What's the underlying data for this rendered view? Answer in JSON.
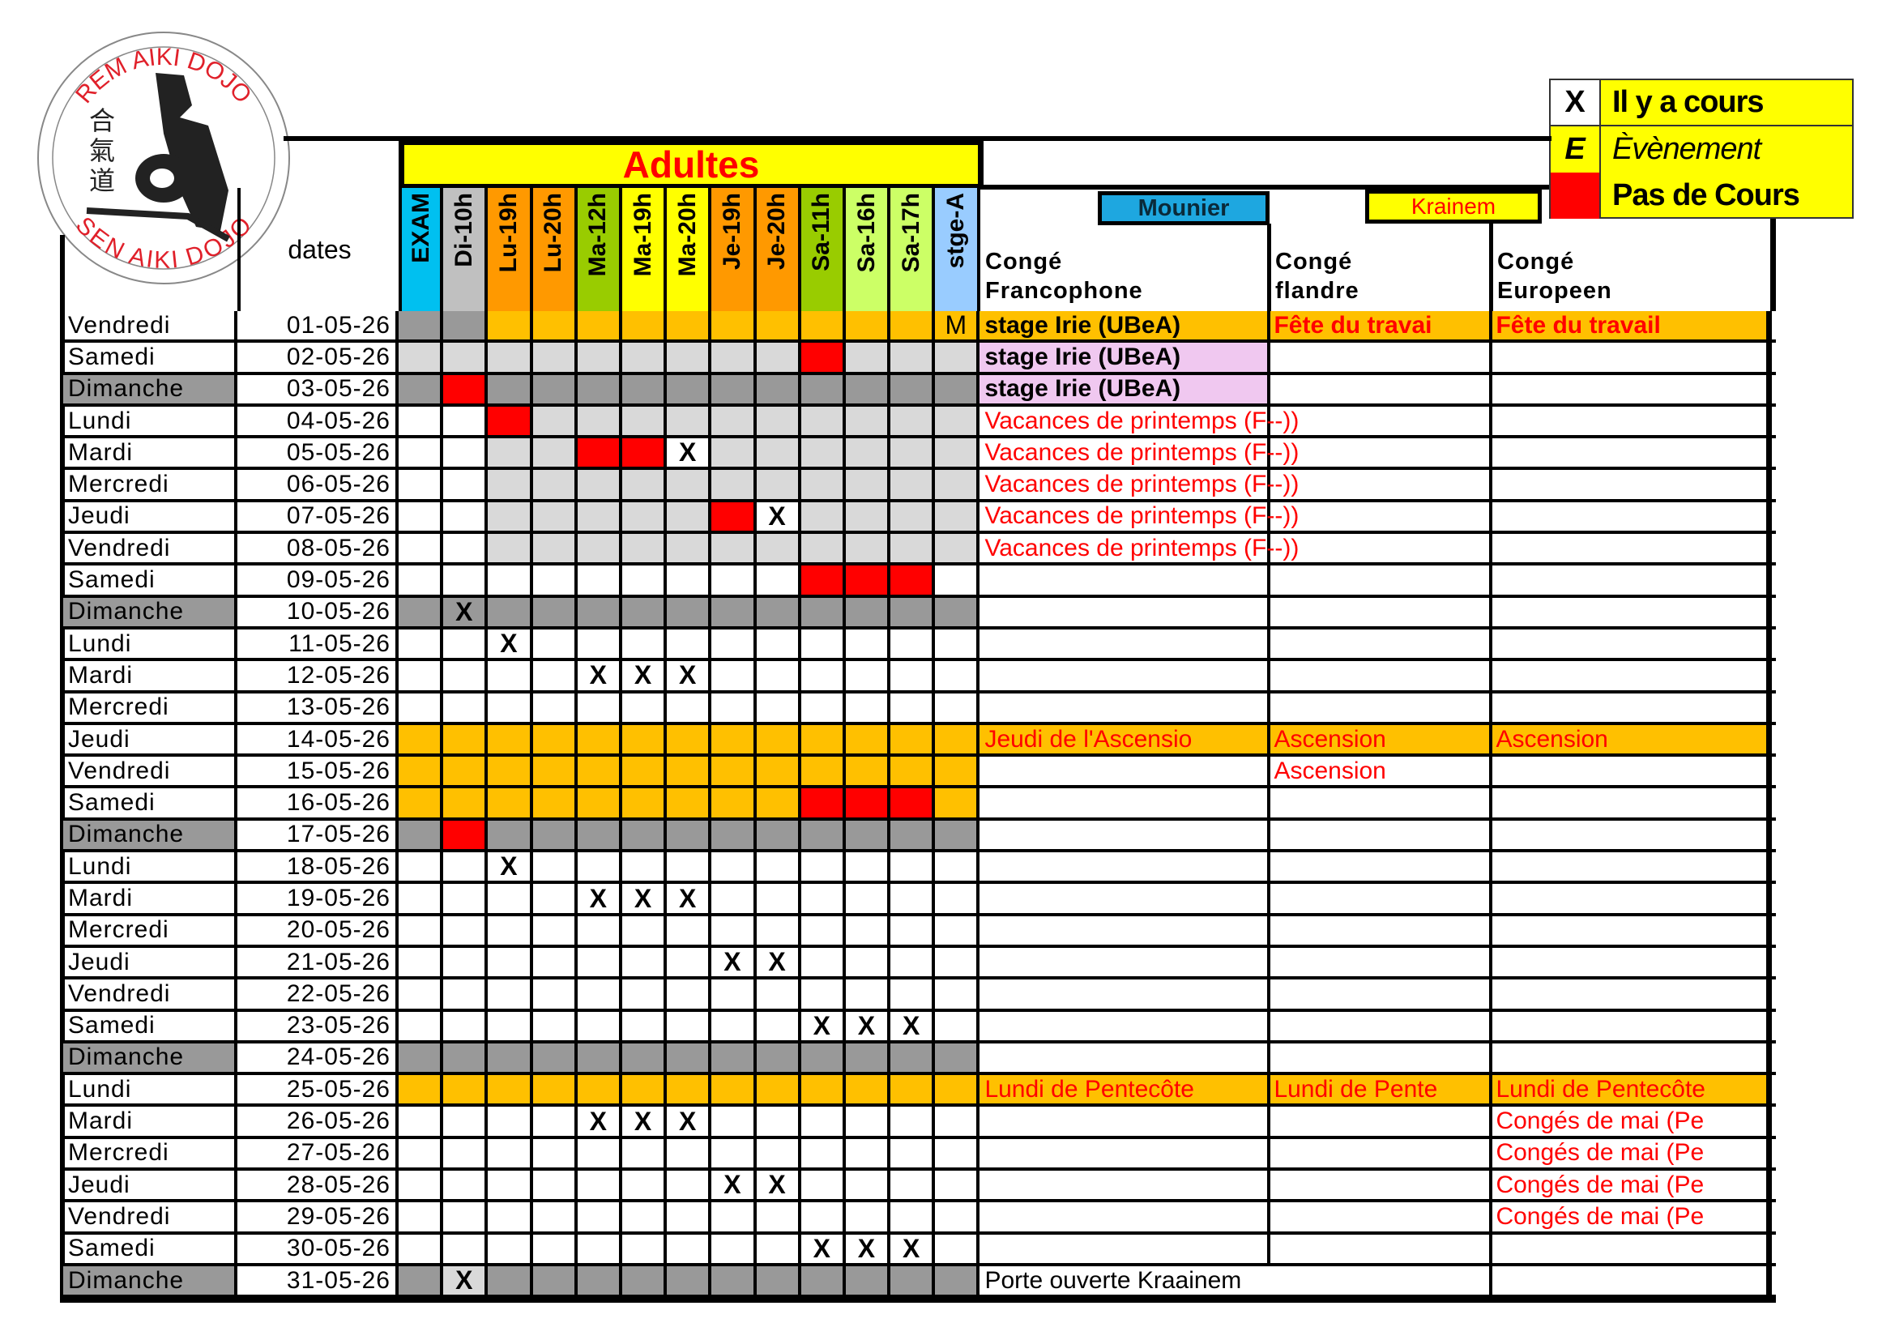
{
  "logo": {
    "top_text": "REM AIKI DOJO",
    "bottom_text": "SEN AIKI DOJO",
    "kanji": "合氣道"
  },
  "legend": [
    {
      "key": "X",
      "label": "Il y a cours",
      "key_bg": "#ffffff"
    },
    {
      "key": "E",
      "label": "Èvènement",
      "key_bg": "#ffff00"
    },
    {
      "key": "",
      "label": "Pas de Cours",
      "key_bg": "#ff0000"
    }
  ],
  "title": "Adultes",
  "dates_header": "dates",
  "columns": [
    {
      "label": "EXAM",
      "color": "#00c0f0"
    },
    {
      "label": "Di-10h",
      "color": "#c0c0c0"
    },
    {
      "label": "Lu-19h",
      "color": "#ff9900"
    },
    {
      "label": "Lu-20h",
      "color": "#ff9900"
    },
    {
      "label": "Ma-12h",
      "color": "#99cc00"
    },
    {
      "label": "Ma-19h",
      "color": "#ffff00"
    },
    {
      "label": "Ma-20h",
      "color": "#ffff00"
    },
    {
      "label": "Je-19h",
      "color": "#ff9900"
    },
    {
      "label": "Je-20h",
      "color": "#ff9900"
    },
    {
      "label": "Sa-11h",
      "color": "#99cc00"
    },
    {
      "label": "Sa-16h",
      "color": "#ccff66"
    },
    {
      "label": "Sa-17h",
      "color": "#ccff66"
    },
    {
      "label": "stge-A",
      "color": "#99ccff"
    }
  ],
  "locations": {
    "mounier": "Mounier",
    "krainem": "Krainem"
  },
  "conge_headers": {
    "francophone": [
      "Congé",
      "Francophone"
    ],
    "flandre": [
      "Congé",
      "flandre"
    ],
    "europeen": [
      "Congé",
      "Europeen"
    ]
  },
  "fill_colors": {
    "W": "#ffffff",
    "L": "#d9d9d9",
    "D": "#999999",
    "O": "#ffc000",
    "R": "#ff0000",
    "P": "#f0c8f0"
  },
  "rows": [
    {
      "day": "Vendredi",
      "date": "01-05-26",
      "fill": "DDOOOOOOOOOOO",
      "marks": {
        "12": "M"
      },
      "fr": "stage Irie (UBeA)",
      "fr_style": "bold",
      "fl": "Fête du travai",
      "eu": "Fête du travail",
      "text_bg": "O"
    },
    {
      "day": "Samedi",
      "date": "02-05-26",
      "fill": "LLLLLLLLLRLLL",
      "marks": {},
      "fr": "stage Irie (UBeA)",
      "fr_style": "bold",
      "fr_bg": "P"
    },
    {
      "day": "Dimanche",
      "date": "03-05-26",
      "fill": "DRDDDDDDDDDDD",
      "marks": {},
      "fr": "stage Irie (UBeA)",
      "fr_style": "bold",
      "fr_bg": "P"
    },
    {
      "day": "Lundi",
      "date": "04-05-26",
      "fill": "WWRLLLLLLLLLL",
      "marks": {},
      "fr": "Vacances de printemps (F--))",
      "fr_style": "red"
    },
    {
      "day": "Mardi",
      "date": "05-05-26",
      "fill": "WWLLRRWLLLLLL",
      "marks": {
        "6": "X"
      },
      "fr": "Vacances de printemps (F--))",
      "fr_style": "red"
    },
    {
      "day": "Mercredi",
      "date": "06-05-26",
      "fill": "WWLLLLLLLLLLL",
      "marks": {},
      "fr": "Vacances de printemps (F--))",
      "fr_style": "red"
    },
    {
      "day": "Jeudi",
      "date": "07-05-26",
      "fill": "WWLLLLLRWLLLL",
      "marks": {
        "8": "X"
      },
      "fr": "Vacances de printemps (F--))",
      "fr_style": "red"
    },
    {
      "day": "Vendredi",
      "date": "08-05-26",
      "fill": "WWLLLLLLLLLLL",
      "marks": {},
      "fr": "Vacances de printemps (F--))",
      "fr_style": "red"
    },
    {
      "day": "Samedi",
      "date": "09-05-26",
      "fill": "WWWWWWWWWRRRW",
      "marks": {}
    },
    {
      "day": "Dimanche",
      "date": "10-05-26",
      "fill": "DDDDDDDDDDDDD",
      "marks": {
        "1": "X"
      }
    },
    {
      "day": "Lundi",
      "date": "11-05-26",
      "fill": "WWWWWWWWWWWWW",
      "marks": {
        "2": "X"
      }
    },
    {
      "day": "Mardi",
      "date": "12-05-26",
      "fill": "WWWWWWWWWWWWW",
      "marks": {
        "4": "X",
        "5": "X",
        "6": "X"
      }
    },
    {
      "day": "Mercredi",
      "date": "13-05-26",
      "fill": "WWWWWWWWWWWWW",
      "marks": {}
    },
    {
      "day": "Jeudi",
      "date": "14-05-26",
      "fill": "OOOOOOOOOOOOO",
      "marks": {},
      "fr": "Jeudi de l'Ascensio",
      "fr_style": "red",
      "fl": "Ascension",
      "eu": "Ascension",
      "text_bg": "O"
    },
    {
      "day": "Vendredi",
      "date": "15-05-26",
      "fill": "OOOOOOOOOOOOO",
      "marks": {},
      "fl": "Ascension"
    },
    {
      "day": "Samedi",
      "date": "16-05-26",
      "fill": "OOOOOOOOORRRO",
      "marks": {}
    },
    {
      "day": "Dimanche",
      "date": "17-05-26",
      "fill": "DRDDDDDDDDDDD",
      "marks": {}
    },
    {
      "day": "Lundi",
      "date": "18-05-26",
      "fill": "WWWWWWWWWWWWW",
      "marks": {
        "2": "X"
      }
    },
    {
      "day": "Mardi",
      "date": "19-05-26",
      "fill": "WWWWWWWWWWWWW",
      "marks": {
        "4": "X",
        "5": "X",
        "6": "X"
      }
    },
    {
      "day": "Mercredi",
      "date": "20-05-26",
      "fill": "WWWWWWWWWWWWW",
      "marks": {}
    },
    {
      "day": "Jeudi",
      "date": "21-05-26",
      "fill": "WWWWWWWWWWWWW",
      "marks": {
        "7": "X",
        "8": "X"
      }
    },
    {
      "day": "Vendredi",
      "date": "22-05-26",
      "fill": "WWWWWWWWWWWWW",
      "marks": {}
    },
    {
      "day": "Samedi",
      "date": "23-05-26",
      "fill": "WWWWWWWWWWWWW",
      "marks": {
        "9": "X",
        "10": "X",
        "11": "X"
      }
    },
    {
      "day": "Dimanche",
      "date": "24-05-26",
      "fill": "DDDDDDDDDDDDD",
      "marks": {}
    },
    {
      "day": "Lundi",
      "date": "25-05-26",
      "fill": "OOOOOOOOOOOOO",
      "marks": {},
      "fr": "Lundi de Pentecôte",
      "fr_style": "red",
      "fl": "Lundi de Pente",
      "eu": "Lundi de Pentecôte",
      "text_bg": "O"
    },
    {
      "day": "Mardi",
      "date": "26-05-26",
      "fill": "WWWWWWWWWWWWW",
      "marks": {
        "4": "X",
        "5": "X",
        "6": "X"
      },
      "eu": "Congés de mai (Pe"
    },
    {
      "day": "Mercredi",
      "date": "27-05-26",
      "fill": "WWWWWWWWWWWWW",
      "marks": {},
      "eu": "Congés de mai (Pe"
    },
    {
      "day": "Jeudi",
      "date": "28-05-26",
      "fill": "WWWWWWWWWWWWW",
      "marks": {
        "7": "X",
        "8": "X"
      },
      "eu": "Congés de mai (Pe"
    },
    {
      "day": "Vendredi",
      "date": "29-05-26",
      "fill": "WWWWWWWWWWWWW",
      "marks": {},
      "eu": "Congés de mai (Pe"
    },
    {
      "day": "Samedi",
      "date": "30-05-26",
      "fill": "WWWWWWWWWWWWW",
      "marks": {
        "9": "X",
        "10": "X",
        "11": "X"
      }
    },
    {
      "day": "Dimanche",
      "date": "31-05-26",
      "fill": "DLDDDDDDDDDDD",
      "marks": {
        "1": "X"
      },
      "fr": "Porte ouverte Kraainem",
      "fr_style": "black",
      "merge_fr_fl": true
    }
  ]
}
